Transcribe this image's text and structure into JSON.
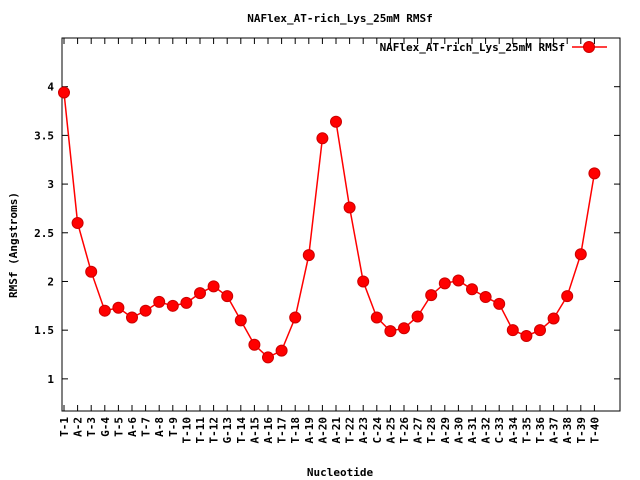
{
  "chart_data": {
    "type": "line",
    "title": "NAFlex_AT-rich_Lys_25mM RMSf",
    "xlabel": "Nucleotide",
    "ylabel": "RMSf (Angstroms)",
    "ylim": [
      0.67,
      4.5
    ],
    "yticks": [
      1,
      1.5,
      2,
      2.5,
      3,
      3.5,
      4
    ],
    "ytick_labels": [
      "1",
      "1.5",
      "2",
      "2.5",
      "3",
      "3.5",
      "4"
    ],
    "legend_position": "top-right",
    "series_color": "#ff0000",
    "categories": [
      "T-1",
      "A-2",
      "T-3",
      "G-4",
      "T-5",
      "A-6",
      "T-7",
      "A-8",
      "T-9",
      "T-10",
      "T-11",
      "T-12",
      "G-13",
      "T-14",
      "A-15",
      "A-16",
      "T-17",
      "T-18",
      "A-19",
      "A-20",
      "A-21",
      "T-22",
      "A-23",
      "C-24",
      "A-25",
      "T-26",
      "A-27",
      "T-28",
      "A-29",
      "A-30",
      "A-31",
      "A-32",
      "C-33",
      "A-34",
      "T-35",
      "T-36",
      "A-37",
      "A-38",
      "T-39",
      "T-40"
    ],
    "series": [
      {
        "name": "NAFlex_AT-rich_Lys_25mM RMSf",
        "segments": [
          {
            "x": [
              1,
              2,
              3,
              4,
              5,
              6,
              7,
              8,
              9,
              10,
              11,
              12,
              13,
              14,
              15,
              16,
              17,
              18,
              19,
              20
            ],
            "values": [
              3.94,
              2.6,
              2.1,
              1.7,
              1.73,
              1.63,
              1.7,
              1.79,
              1.75,
              1.78,
              1.88,
              1.95,
              1.85,
              1.6,
              1.35,
              1.22,
              1.29,
              1.63,
              2.27,
              3.47
            ]
          },
          {
            "x": [
              21,
              22,
              23,
              24,
              25,
              26,
              27,
              28,
              29,
              30,
              31,
              32,
              33,
              34,
              35,
              36,
              37,
              38,
              39,
              40
            ],
            "values": [
              3.64,
              2.76,
              2.0,
              1.63,
              1.49,
              1.52,
              1.64,
              1.86,
              1.98,
              2.01,
              1.92,
              1.84,
              1.77,
              1.5,
              1.44,
              1.5,
              1.62,
              1.85,
              2.28,
              3.11
            ]
          }
        ]
      }
    ]
  }
}
